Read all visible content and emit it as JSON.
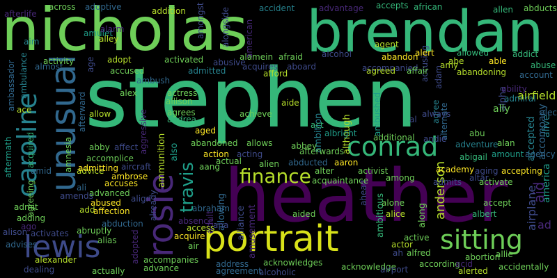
{
  "word_cloud": {
    "background": "#000000",
    "palette": [
      "#440154",
      "#482878",
      "#3e4a89",
      "#31688e",
      "#26828e",
      "#1f9e89",
      "#35b779",
      "#6ece58",
      "#b5de2b",
      "#fde725"
    ],
    "words": [
      {
        "text": "stephen",
        "color": "#35b779"
      },
      {
        "text": "nicholas",
        "color": "#6ece58"
      },
      {
        "text": "brendan",
        "color": "#35b779"
      },
      {
        "text": "heather",
        "color": "#440154"
      },
      {
        "text": "portrait",
        "color": "#d8e219"
      },
      {
        "text": "unusual",
        "color": "#31688e"
      },
      {
        "text": "caroline",
        "color": "#26828e"
      },
      {
        "text": "rosie",
        "color": "#482878"
      },
      {
        "text": "conrad",
        "color": "#35b779"
      },
      {
        "text": "lewis",
        "color": "#3e4a89"
      },
      {
        "text": "sitting",
        "color": "#6ece58"
      },
      {
        "text": "finance",
        "color": "#b5de2b"
      },
      {
        "text": "travis",
        "color": "#1f9e89"
      },
      {
        "text": "anderson",
        "color": "#b5de2b"
      },
      {
        "text": "airplane",
        "color": "#3e4a89"
      },
      {
        "text": "aid",
        "color": "#482878"
      },
      {
        "text": "ad",
        "color": "#482878"
      },
      {
        "text": "america",
        "color": "#1f9e89"
      },
      {
        "text": "alive",
        "color": "#26828e"
      },
      {
        "text": "airfield",
        "color": "#b5de2b"
      },
      {
        "text": "accompany",
        "color": "#31688e"
      },
      {
        "text": "accepted",
        "color": "#26828e"
      },
      {
        "text": "alpha",
        "color": "#3e4a89"
      },
      {
        "text": "ambition",
        "color": "#26828e"
      },
      {
        "text": "ally",
        "color": "#6ece58"
      },
      {
        "text": "also",
        "color": "#1f9e89"
      },
      {
        "text": "ammunition",
        "color": "#b5de2b"
      },
      {
        "text": "adult",
        "color": "#482878"
      },
      {
        "text": "allowing",
        "color": "#31688e"
      },
      {
        "text": "alliance",
        "color": "#3e4a89"
      },
      {
        "text": "amusement",
        "color": "#482878"
      },
      {
        "text": "ambitious",
        "color": "#35b779"
      },
      {
        "text": "along",
        "color": "#6ece58"
      },
      {
        "text": "ahead",
        "color": "#3e4a89"
      },
      {
        "text": "although",
        "color": "#b5de2b"
      },
      {
        "text": "ambushed",
        "color": "#1f9e89"
      },
      {
        "text": "alternate",
        "color": "#31688e"
      },
      {
        "text": "agree",
        "color": "#26828e"
      },
      {
        "text": "adam",
        "color": "#3e4a89"
      },
      {
        "text": "accusing",
        "color": "#3e4a89"
      },
      {
        "text": "age",
        "color": "#3e4a89"
      },
      {
        "text": "afterward",
        "color": "#31688e"
      },
      {
        "text": "amnesia",
        "color": "#6ece58"
      },
      {
        "text": "aggressive",
        "color": "#482878"
      },
      {
        "text": "ambassador",
        "color": "#31688e"
      },
      {
        "text": "ambulance",
        "color": "#26828e"
      },
      {
        "text": "aftermath",
        "color": "#1f9e89"
      },
      {
        "text": "acquired",
        "color": "#35b779"
      },
      {
        "text": "agreeing",
        "color": "#6ece58"
      },
      {
        "text": "alongside",
        "color": "#3e4a89"
      },
      {
        "text": "amongst",
        "color": "#3e4a89"
      },
      {
        "text": "aim",
        "color": "#26828e"
      },
      {
        "text": "across",
        "color": "#6ece58"
      },
      {
        "text": "afterlife",
        "color": "#482878"
      },
      {
        "text": "adoptive",
        "color": "#31688e"
      },
      {
        "text": "addition",
        "color": "#b5de2b"
      },
      {
        "text": "accident",
        "color": "#26828e"
      },
      {
        "text": "american",
        "color": "#482878"
      },
      {
        "text": "advantage",
        "color": "#482878"
      },
      {
        "text": "accepts",
        "color": "#35b779"
      },
      {
        "text": "african",
        "color": "#35b779"
      },
      {
        "text": "allen",
        "color": "#35b779"
      },
      {
        "text": "abducts",
        "color": "#6ece58"
      },
      {
        "text": "amulet",
        "color": "#1f9e89"
      },
      {
        "text": "alarm",
        "color": "#482878"
      },
      {
        "text": "alley",
        "color": "#b5de2b"
      },
      {
        "text": "agent",
        "color": "#b5de2b"
      },
      {
        "text": "alcohol",
        "color": "#3e4a89"
      },
      {
        "text": "allowed",
        "color": "#35b779"
      },
      {
        "text": "addict",
        "color": "#35b779"
      },
      {
        "text": "alert",
        "color": "#fde725"
      },
      {
        "text": "abe",
        "color": "#b5de2b"
      },
      {
        "text": "able",
        "color": "#fde725"
      },
      {
        "text": "abuse",
        "color": "#35b779"
      },
      {
        "text": "account",
        "color": "#31688e"
      },
      {
        "text": "alamein",
        "color": "#6ece58"
      },
      {
        "text": "afraid",
        "color": "#6ece58"
      },
      {
        "text": "abandon",
        "color": "#fde725"
      },
      {
        "text": "accompanied",
        "color": "#3e4a89"
      },
      {
        "text": "amy",
        "color": "#b5de2b"
      },
      {
        "text": "abandoning",
        "color": "#b5de2b"
      },
      {
        "text": "almost",
        "color": "#31688e"
      },
      {
        "text": "activity",
        "color": "#6ece58"
      },
      {
        "text": "adopt",
        "color": "#b5de2b"
      },
      {
        "text": "activated",
        "color": "#6ece58"
      },
      {
        "text": "accused",
        "color": "#6ece58"
      },
      {
        "text": "ambush",
        "color": "#31688e"
      },
      {
        "text": "admitted",
        "color": "#26828e"
      },
      {
        "text": "abusive",
        "color": "#3e4a89"
      },
      {
        "text": "acquires",
        "color": "#3e4a89"
      },
      {
        "text": "aboard",
        "color": "#3e4a89"
      },
      {
        "text": "afford",
        "color": "#b5de2b"
      },
      {
        "text": "agreed",
        "color": "#b5de2b"
      },
      {
        "text": "affair",
        "color": "#6ece58"
      },
      {
        "text": "alex",
        "color": "#6ece58"
      },
      {
        "text": "actress",
        "color": "#6ece58"
      },
      {
        "text": "allison",
        "color": "#6ece58"
      },
      {
        "text": "agrees",
        "color": "#6ece58"
      },
      {
        "text": "andrea",
        "color": "#35b779"
      },
      {
        "text": "aide",
        "color": "#b5de2b"
      },
      {
        "text": "achieve",
        "color": "#6ece58"
      },
      {
        "text": "ability",
        "color": "#482878"
      },
      {
        "text": "admiral",
        "color": "#26828e"
      },
      {
        "text": "alec",
        "color": "#31688e"
      },
      {
        "text": "ace",
        "color": "#b5de2b"
      },
      {
        "text": "allow",
        "color": "#b5de2b"
      },
      {
        "text": "advice",
        "color": "#b5de2b"
      },
      {
        "text": "always",
        "color": "#3e4a89"
      },
      {
        "text": "al",
        "color": "#3e4a89"
      },
      {
        "text": "aged",
        "color": "#fde725"
      },
      {
        "text": "act",
        "color": "#35b779"
      },
      {
        "text": "albright",
        "color": "#1f9e89"
      },
      {
        "text": "additional",
        "color": "#6ece58"
      },
      {
        "text": "andie",
        "color": "#3e4a89"
      },
      {
        "text": "abu",
        "color": "#6ece58"
      },
      {
        "text": "adventure",
        "color": "#26828e"
      },
      {
        "text": "alan",
        "color": "#6ece58"
      },
      {
        "text": "abigail",
        "color": "#35b779"
      },
      {
        "text": "amount",
        "color": "#1f9e89"
      },
      {
        "text": "agency",
        "color": "#31688e"
      },
      {
        "text": "abby",
        "color": "#6ece58"
      },
      {
        "text": "affect",
        "color": "#3e4a89"
      },
      {
        "text": "abandoned",
        "color": "#6ece58"
      },
      {
        "text": "allows",
        "color": "#6ece58"
      },
      {
        "text": "abbey",
        "color": "#6ece58"
      },
      {
        "text": "afterwards",
        "color": "#6ece58"
      },
      {
        "text": "accomplice",
        "color": "#6ece58"
      },
      {
        "text": "amid",
        "color": "#31688e"
      },
      {
        "text": "aircraft",
        "color": "#3e4a89"
      },
      {
        "text": "action",
        "color": "#fde725"
      },
      {
        "text": "acting",
        "color": "#3e4a89"
      },
      {
        "text": "abducted",
        "color": "#31688e"
      },
      {
        "text": "aaron",
        "color": "#fde725"
      },
      {
        "text": "actual",
        "color": "#6ece58"
      },
      {
        "text": "alien",
        "color": "#6ece58"
      },
      {
        "text": "admitting",
        "color": "#fde725"
      },
      {
        "text": "ambrose",
        "color": "#fde725"
      },
      {
        "text": "aang",
        "color": "#6ece58"
      },
      {
        "text": "alter",
        "color": "#6ece58"
      },
      {
        "text": "activist",
        "color": "#6ece58"
      },
      {
        "text": "academy",
        "color": "#fde725"
      },
      {
        "text": "aging",
        "color": "#3e4a89"
      },
      {
        "text": "accepting",
        "color": "#fde725"
      },
      {
        "text": "altar",
        "color": "#3e4a89"
      },
      {
        "text": "acquaintance",
        "color": "#6ece58"
      },
      {
        "text": "among",
        "color": "#6ece58"
      },
      {
        "text": "admits",
        "color": "#3e4a89"
      },
      {
        "text": "activate",
        "color": "#6ece58"
      },
      {
        "text": "accuses",
        "color": "#fde725"
      },
      {
        "text": "advanced",
        "color": "#6ece58"
      },
      {
        "text": "ali",
        "color": "#31688e"
      },
      {
        "text": "amends",
        "color": "#3e4a89"
      },
      {
        "text": "admit",
        "color": "#6ece58"
      },
      {
        "text": "abraham",
        "color": "#31688e"
      },
      {
        "text": "align",
        "color": "#3e4a89"
      },
      {
        "text": "add",
        "color": "#b5de2b"
      },
      {
        "text": "abused",
        "color": "#fde725"
      },
      {
        "text": "affection",
        "color": "#fde725"
      },
      {
        "text": "alone",
        "color": "#6ece58"
      },
      {
        "text": "alice",
        "color": "#b5de2b"
      },
      {
        "text": "accept",
        "color": "#6ece58"
      },
      {
        "text": "albert",
        "color": "#35b779"
      },
      {
        "text": "adding",
        "color": "#6ece58"
      },
      {
        "text": "ago",
        "color": "#482878"
      },
      {
        "text": "alison",
        "color": "#3e4a89"
      },
      {
        "text": "activates",
        "color": "#3e4a89"
      },
      {
        "text": "abruptly",
        "color": "#6ece58"
      },
      {
        "text": "abduction",
        "color": "#31688e"
      },
      {
        "text": "already",
        "color": "#3e4a89"
      },
      {
        "text": "absence",
        "color": "#482878"
      },
      {
        "text": "access",
        "color": "#b5de2b"
      },
      {
        "text": "aided",
        "color": "#6ece58"
      },
      {
        "text": "ana",
        "color": "#3e4a89"
      },
      {
        "text": "actor",
        "color": "#b5de2b"
      },
      {
        "text": "active",
        "color": "#6ece58"
      },
      {
        "text": "advises",
        "color": "#31688e"
      },
      {
        "text": "alexander",
        "color": "#b5de2b"
      },
      {
        "text": "alias",
        "color": "#6ece58"
      },
      {
        "text": "acquire",
        "color": "#fde725"
      },
      {
        "text": "air",
        "color": "#6ece58"
      },
      {
        "text": "adopted",
        "color": "#482878"
      },
      {
        "text": "accompanies",
        "color": "#6ece58"
      },
      {
        "text": "advance",
        "color": "#6ece58"
      },
      {
        "text": "address",
        "color": "#31688e"
      },
      {
        "text": "agreement",
        "color": "#31688e"
      },
      {
        "text": "alcoholic",
        "color": "#3e4a89"
      },
      {
        "text": "acknowledges",
        "color": "#6ece58"
      },
      {
        "text": "acknowledge",
        "color": "#6ece58"
      },
      {
        "text": "ah",
        "color": "#3e4a89"
      },
      {
        "text": "alfred",
        "color": "#6ece58"
      },
      {
        "text": "according",
        "color": "#6ece58"
      },
      {
        "text": "airport",
        "color": "#3e4a89"
      },
      {
        "text": "acid",
        "color": "#482878"
      },
      {
        "text": "abortion",
        "color": "#6ece58"
      },
      {
        "text": "allie",
        "color": "#6ece58"
      },
      {
        "text": "alerted",
        "color": "#b5de2b"
      },
      {
        "text": "accidentally",
        "color": "#6ece58"
      },
      {
        "text": "dealing",
        "color": "#3e4a89"
      },
      {
        "text": "actually",
        "color": "#6ece58"
      }
    ]
  }
}
